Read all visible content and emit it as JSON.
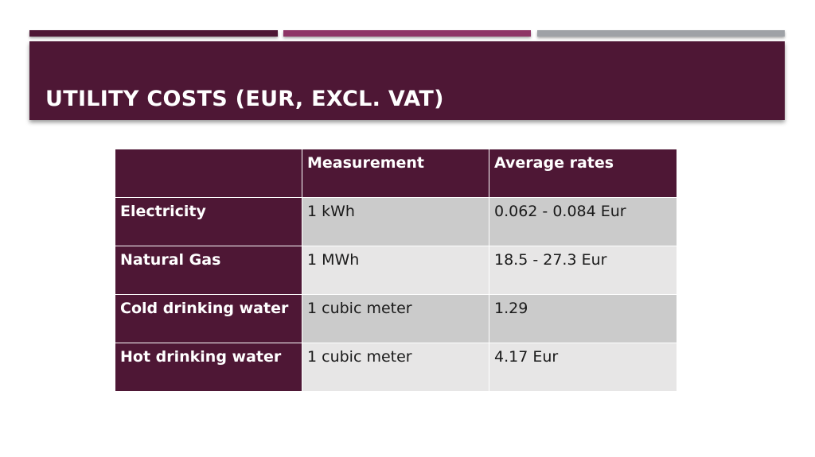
{
  "slide": {
    "title": "UTILITY COSTS (EUR, EXCL. VAT)"
  },
  "colors": {
    "primary": "#4e1735",
    "accent_magenta": "#8e3566",
    "accent_gray": "#9ea1a6",
    "row_dark": "#cbcbcb",
    "row_light": "#e7e6e6"
  },
  "table": {
    "headers": [
      "",
      "Measurement",
      "Average rates"
    ],
    "rows": [
      {
        "utility": "Electricity",
        "measurement": "1 kWh",
        "rate": "0.062 - 0.084 Eur"
      },
      {
        "utility": "Natural Gas",
        "measurement": "1 MWh",
        "rate": "18.5 - 27.3 Eur"
      },
      {
        "utility": "Cold drinking water",
        "measurement": "1 cubic meter",
        "rate": "1.29"
      },
      {
        "utility": "Hot drinking water",
        "measurement": "1 cubic meter",
        "rate": "4.17 Eur"
      }
    ]
  }
}
